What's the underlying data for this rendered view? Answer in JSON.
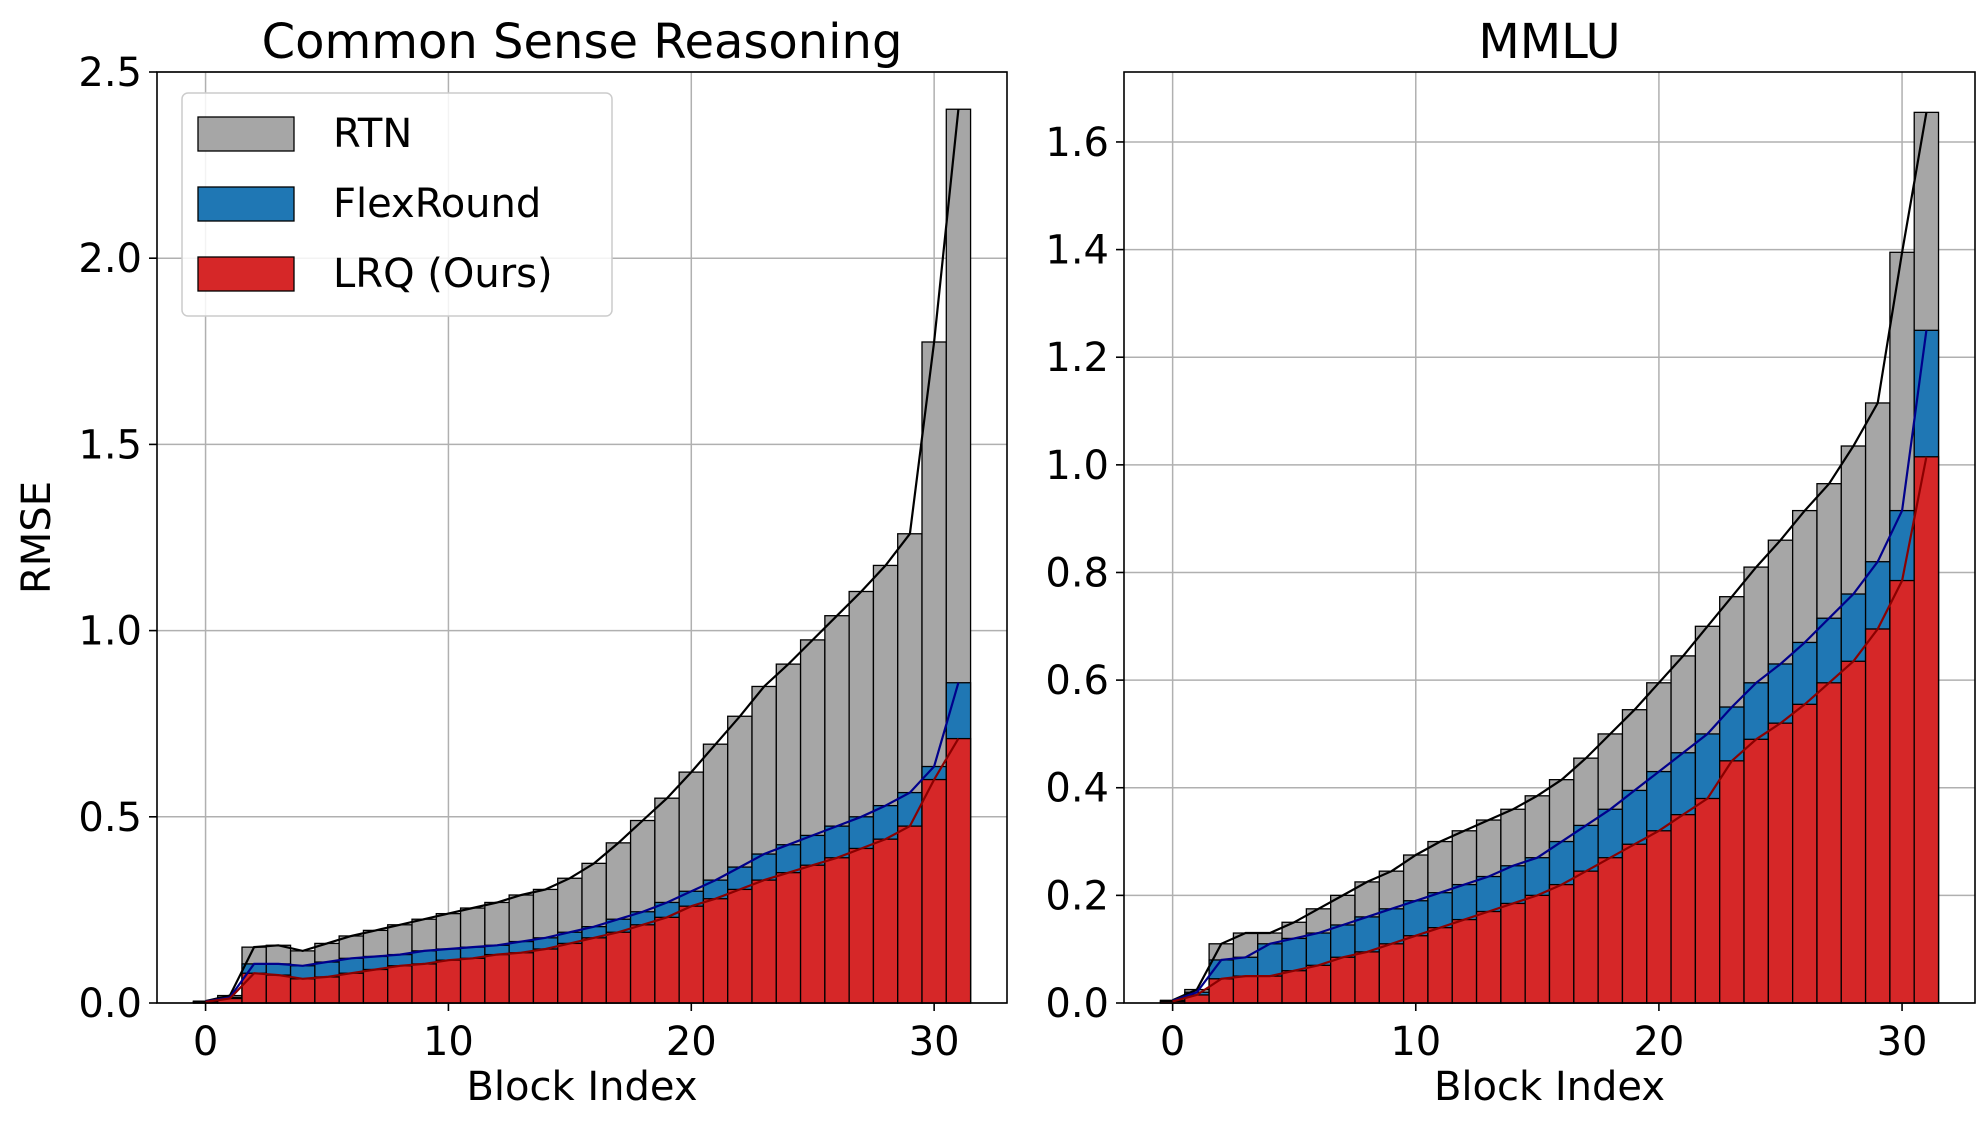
{
  "chart_data": [
    {
      "type": "bar",
      "title": "Common Sense Reasoning",
      "xlabel": "Block Index",
      "ylabel": "RMSE",
      "x": [
        0,
        1,
        2,
        3,
        4,
        5,
        6,
        7,
        8,
        9,
        10,
        11,
        12,
        13,
        14,
        15,
        16,
        17,
        18,
        19,
        20,
        21,
        22,
        23,
        24,
        25,
        26,
        27,
        28,
        29,
        30,
        31
      ],
      "xticks": [
        0,
        10,
        20,
        30
      ],
      "yticks": [
        "0.0",
        "0.5",
        "1.0",
        "1.5",
        "2.0",
        "2.5"
      ],
      "xlim": [
        -2,
        33
      ],
      "ylim": [
        0,
        2.5
      ],
      "grid": true,
      "legend_position": "top-left",
      "series": [
        {
          "name": "RTN",
          "color": "#a6a6a6",
          "line_color": "#000000",
          "values": [
            0.005,
            0.02,
            0.15,
            0.155,
            0.14,
            0.16,
            0.18,
            0.195,
            0.21,
            0.225,
            0.24,
            0.255,
            0.27,
            0.29,
            0.305,
            0.335,
            0.375,
            0.43,
            0.49,
            0.55,
            0.62,
            0.695,
            0.77,
            0.85,
            0.91,
            0.975,
            1.04,
            1.105,
            1.175,
            1.26,
            1.775,
            2.4
          ]
        },
        {
          "name": "FlexRound",
          "color": "#1f77b4",
          "line_color": "#00008b",
          "values": [
            0.004,
            0.015,
            0.105,
            0.105,
            0.1,
            0.11,
            0.12,
            0.125,
            0.13,
            0.14,
            0.145,
            0.15,
            0.155,
            0.165,
            0.175,
            0.19,
            0.205,
            0.225,
            0.245,
            0.27,
            0.3,
            0.33,
            0.365,
            0.4,
            0.425,
            0.45,
            0.475,
            0.5,
            0.53,
            0.565,
            0.635,
            0.86
          ]
        },
        {
          "name": "LRQ (Ours)",
          "color": "#d62728",
          "line_color": "#8b0000",
          "values": [
            0.003,
            0.012,
            0.08,
            0.075,
            0.065,
            0.07,
            0.08,
            0.09,
            0.1,
            0.105,
            0.115,
            0.12,
            0.13,
            0.135,
            0.145,
            0.16,
            0.175,
            0.19,
            0.21,
            0.23,
            0.26,
            0.28,
            0.305,
            0.33,
            0.35,
            0.37,
            0.39,
            0.415,
            0.44,
            0.475,
            0.6,
            0.71
          ]
        }
      ]
    },
    {
      "type": "bar",
      "title": "MMLU",
      "xlabel": "Block Index",
      "ylabel": "",
      "x": [
        0,
        1,
        2,
        3,
        4,
        5,
        6,
        7,
        8,
        9,
        10,
        11,
        12,
        13,
        14,
        15,
        16,
        17,
        18,
        19,
        20,
        21,
        22,
        23,
        24,
        25,
        26,
        27,
        28,
        29,
        30,
        31
      ],
      "xticks": [
        0,
        10,
        20,
        30
      ],
      "yticks": [
        "0.0",
        "0.2",
        "0.4",
        "0.6",
        "0.8",
        "1.0",
        "1.2",
        "1.4",
        "1.6"
      ],
      "xlim": [
        -2,
        33
      ],
      "ylim": [
        0,
        1.73
      ],
      "grid": true,
      "series": [
        {
          "name": "RTN",
          "color": "#a6a6a6",
          "line_color": "#000000",
          "values": [
            0.005,
            0.025,
            0.11,
            0.13,
            0.13,
            0.15,
            0.175,
            0.2,
            0.225,
            0.245,
            0.275,
            0.3,
            0.32,
            0.34,
            0.36,
            0.385,
            0.415,
            0.455,
            0.5,
            0.545,
            0.595,
            0.645,
            0.7,
            0.755,
            0.81,
            0.86,
            0.915,
            0.965,
            1.035,
            1.115,
            1.395,
            1.655
          ]
        },
        {
          "name": "FlexRound",
          "color": "#1f77b4",
          "line_color": "#00008b",
          "values": [
            0.004,
            0.02,
            0.08,
            0.085,
            0.11,
            0.12,
            0.13,
            0.145,
            0.16,
            0.175,
            0.19,
            0.205,
            0.22,
            0.235,
            0.255,
            0.27,
            0.3,
            0.33,
            0.36,
            0.395,
            0.43,
            0.465,
            0.5,
            0.55,
            0.595,
            0.63,
            0.67,
            0.715,
            0.76,
            0.82,
            0.915,
            1.25
          ]
        },
        {
          "name": "LRQ (Ours)",
          "color": "#d62728",
          "line_color": "#8b0000",
          "values": [
            0.003,
            0.015,
            0.045,
            0.05,
            0.05,
            0.06,
            0.07,
            0.085,
            0.095,
            0.11,
            0.125,
            0.14,
            0.155,
            0.17,
            0.185,
            0.2,
            0.22,
            0.245,
            0.27,
            0.295,
            0.32,
            0.35,
            0.38,
            0.45,
            0.49,
            0.52,
            0.555,
            0.595,
            0.635,
            0.695,
            0.785,
            1.015
          ]
        }
      ]
    }
  ]
}
